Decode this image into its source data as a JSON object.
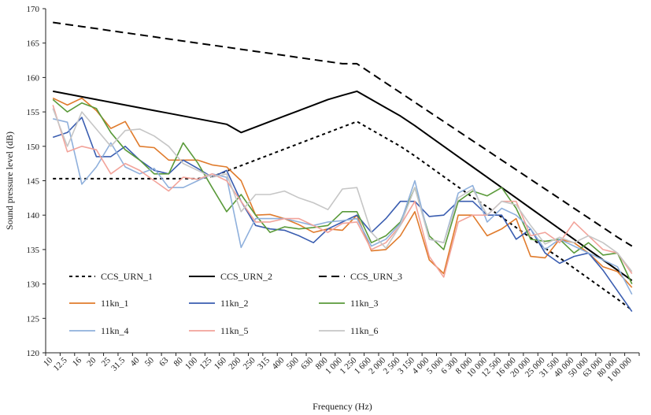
{
  "chart_data": {
    "type": "line",
    "title": "",
    "xlabel": "Frequency (Hz)",
    "ylabel": "Sound pressure level (dB)",
    "ylim": [
      120,
      170
    ],
    "yticks": [
      120,
      125,
      130,
      135,
      140,
      145,
      150,
      155,
      160,
      165,
      170
    ],
    "grid": false,
    "legend_position": "bottom-left, inside plot, 3 columns",
    "categories": [
      "10",
      "12.5",
      "16",
      "20",
      "25",
      "31.5",
      "40",
      "50",
      "63",
      "80",
      "100",
      "125",
      "160",
      "200",
      "250",
      "315",
      "400",
      "500",
      "630",
      "800",
      "1 000",
      "1 250",
      "1 600",
      "2 000",
      "2 500",
      "3 150",
      "4 000",
      "5 000",
      "6 300",
      "8 000",
      "10 000",
      "12 500",
      "16 000",
      "20 000",
      "25 000",
      "31 500",
      "40 000",
      "50 000",
      "63 000",
      "80 000",
      "1 00 000"
    ],
    "series": [
      {
        "name": "CCS_URN_1",
        "color": "#000000",
        "dash": "dotted",
        "values": [
          145.3,
          145.3,
          145.3,
          145.3,
          145.3,
          145.3,
          145.3,
          145.3,
          145.3,
          145.3,
          145.3,
          145.6,
          146.4,
          147.2,
          148.0,
          148.8,
          149.6,
          150.4,
          151.2,
          152.0,
          152.8,
          153.6,
          152.4,
          151.2,
          150.0,
          148.6,
          147.1,
          145.6,
          144.1,
          142.6,
          141.2,
          139.7,
          138.2,
          136.7,
          135.2,
          133.8,
          132.3,
          130.8,
          129.3,
          127.8,
          126.2
        ]
      },
      {
        "name": "CCS_URN_2",
        "color": "#000000",
        "dash": "solid",
        "values": [
          158.0,
          157.6,
          157.2,
          156.8,
          156.4,
          156.0,
          155.6,
          155.2,
          154.8,
          154.4,
          154.0,
          153.6,
          153.2,
          152.0,
          152.8,
          153.6,
          154.4,
          155.2,
          156.0,
          156.8,
          157.4,
          158.0,
          156.8,
          155.6,
          154.4,
          153.0,
          151.5,
          150.0,
          148.5,
          147.0,
          145.5,
          144.0,
          142.5,
          141.0,
          139.5,
          138.0,
          136.5,
          135.0,
          133.5,
          132.0,
          130.5
        ]
      },
      {
        "name": "CCS_URN_3",
        "color": "#000000",
        "dash": "dashed",
        "values": [
          168.0,
          167.7,
          167.4,
          167.1,
          166.8,
          166.5,
          166.2,
          165.9,
          165.6,
          165.3,
          165.0,
          164.7,
          164.4,
          164.1,
          163.8,
          163.5,
          163.2,
          162.9,
          162.6,
          162.3,
          162.0,
          162.0,
          160.6,
          159.2,
          157.8,
          156.4,
          155.0,
          153.6,
          152.2,
          150.8,
          149.4,
          148.0,
          146.6,
          145.2,
          143.8,
          142.4,
          141.0,
          139.6,
          138.2,
          136.8,
          135.5
        ]
      },
      {
        "name": "11kn_1",
        "color": "#e07b2c",
        "dash": "solid",
        "values": [
          157.0,
          156.0,
          157.0,
          155.2,
          152.6,
          153.6,
          150.0,
          149.8,
          148.0,
          148.0,
          148.0,
          147.3,
          147.0,
          145.0,
          140.0,
          140.1,
          139.5,
          138.6,
          137.5,
          138.0,
          137.8,
          140.0,
          134.8,
          135.0,
          137.0,
          140.5,
          133.5,
          131.5,
          140.0,
          140.0,
          137.0,
          138.0,
          139.5,
          134.0,
          133.8,
          136.5,
          136.0,
          134.5,
          132.5,
          131.8,
          129.5
        ]
      },
      {
        "name": "11kn_2",
        "color": "#3a5db0",
        "dash": "solid",
        "values": [
          151.3,
          152.0,
          154.2,
          148.5,
          148.5,
          150.0,
          148.0,
          146.5,
          146.0,
          148.0,
          146.8,
          145.5,
          146.5,
          142.0,
          138.5,
          138.0,
          137.8,
          137.0,
          136.0,
          138.0,
          139.0,
          140.0,
          137.5,
          139.5,
          142.0,
          142.0,
          139.8,
          140.0,
          142.0,
          142.0,
          140.0,
          140.0,
          136.5,
          138.0,
          134.5,
          133.0,
          134.0,
          134.5,
          132.0,
          129.0,
          126.0
        ]
      },
      {
        "name": "11kn_3",
        "color": "#5a9a3a",
        "dash": "solid",
        "values": [
          156.8,
          155.0,
          156.3,
          155.5,
          152.0,
          149.5,
          148.0,
          146.0,
          146.0,
          150.5,
          147.6,
          144.0,
          140.5,
          143.0,
          140.0,
          137.5,
          138.3,
          138.0,
          138.2,
          138.5,
          140.5,
          140.5,
          136.0,
          137.0,
          139.0,
          144.0,
          137.0,
          135.0,
          142.0,
          143.5,
          142.8,
          144.0,
          141.0,
          136.5,
          136.2,
          136.5,
          134.5,
          136.0,
          134.2,
          134.5,
          130.0
        ]
      },
      {
        "name": "11kn_4",
        "color": "#8fb0dc",
        "dash": "solid",
        "values": [
          154.0,
          153.5,
          144.5,
          147.0,
          150.5,
          147.0,
          146.0,
          146.8,
          144.0,
          144.0,
          145.0,
          146.0,
          145.5,
          135.3,
          139.5,
          139.5,
          139.5,
          139.0,
          138.5,
          139.0,
          139.2,
          139.5,
          135.5,
          136.5,
          138.8,
          145.0,
          136.5,
          136.0,
          143.2,
          144.3,
          139.0,
          141.0,
          140.0,
          138.0,
          135.0,
          136.5,
          135.5,
          134.5,
          133.5,
          132.5,
          128.5
        ]
      },
      {
        "name": "11kn_5",
        "color": "#f2a39a",
        "dash": "solid",
        "values": [
          156.0,
          149.2,
          150.0,
          149.5,
          146.0,
          147.5,
          146.5,
          145.0,
          143.5,
          145.5,
          145.2,
          146.0,
          145.0,
          142.0,
          139.0,
          139.0,
          139.5,
          139.5,
          138.5,
          137.5,
          138.8,
          139.0,
          135.0,
          136.0,
          138.5,
          142.0,
          134.0,
          131.0,
          139.0,
          140.0,
          140.0,
          142.0,
          142.0,
          137.0,
          137.5,
          136.0,
          139.0,
          137.0,
          135.0,
          134.5,
          131.5
        ]
      },
      {
        "name": "11kn_6",
        "color": "#c6c6c6",
        "dash": "solid",
        "values": [
          155.5,
          150.0,
          155.0,
          152.5,
          150.0,
          152.3,
          152.5,
          151.5,
          150.0,
          147.5,
          146.5,
          145.5,
          146.0,
          140.5,
          143.0,
          143.0,
          143.5,
          142.5,
          141.8,
          140.8,
          143.8,
          144.0,
          137.5,
          135.2,
          138.5,
          144.0,
          136.5,
          136.0,
          142.5,
          143.8,
          140.0,
          142.0,
          141.5,
          138.5,
          135.8,
          136.8,
          136.0,
          137.0,
          136.0,
          134.5,
          131.8
        ]
      }
    ]
  }
}
